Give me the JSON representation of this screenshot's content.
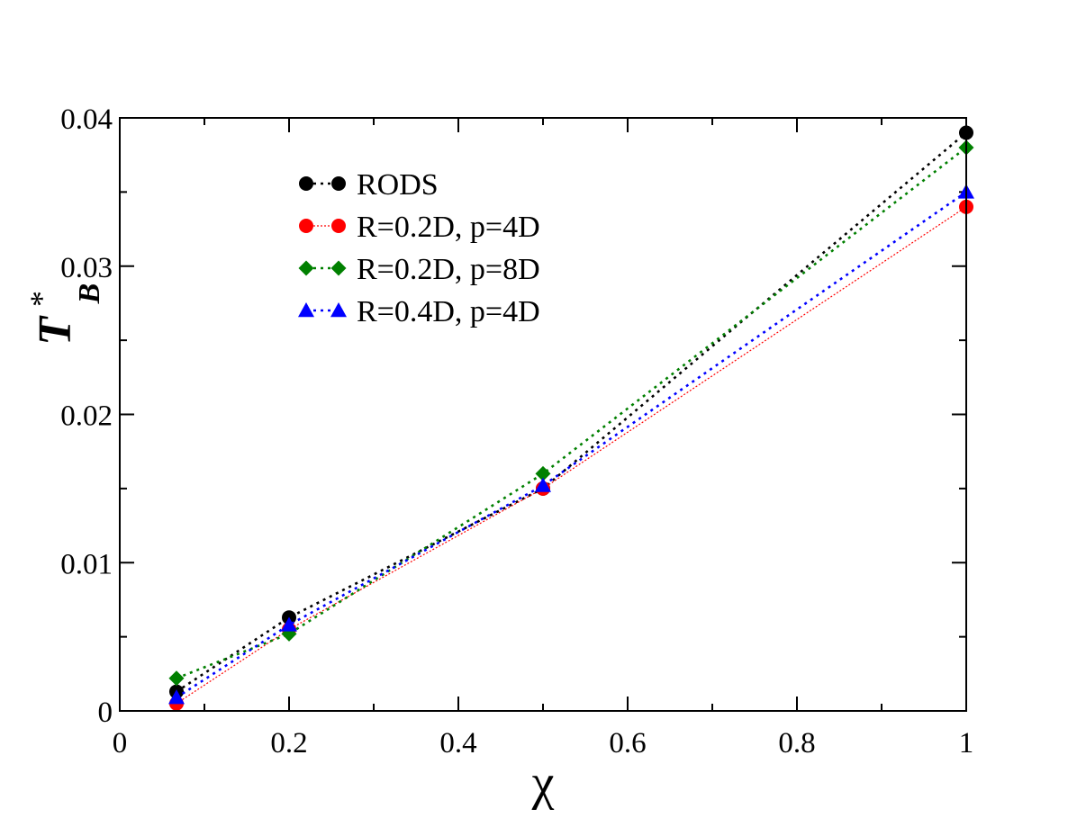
{
  "chart_data": {
    "type": "line",
    "title": "",
    "xlabel": "χ",
    "ylabel": {
      "main": "T",
      "sup": "*",
      "sub": "B"
    },
    "xlim": [
      0,
      1
    ],
    "ylim": [
      0,
      0.04
    ],
    "x_ticks": [
      0,
      0.2,
      0.4,
      0.6,
      0.8,
      1
    ],
    "x_tick_labels": [
      "0",
      "0.2",
      "0.4",
      "0.6",
      "0.8",
      "1"
    ],
    "y_ticks": [
      0,
      0.01,
      0.02,
      0.03,
      0.04
    ],
    "y_tick_labels": [
      "0",
      "0.01",
      "0.02",
      "0.03",
      "0.04"
    ],
    "legend_position": "top-left",
    "series": [
      {
        "name": "RODS",
        "color": "#000000",
        "marker": "circle",
        "line_style": "dotted",
        "x": [
          0.067,
          0.2,
          0.5,
          1.0
        ],
        "y": [
          0.0013,
          0.0063,
          0.015,
          0.039
        ]
      },
      {
        "name": "R=0.2D, p=4D",
        "color": "#ff0000",
        "marker": "circle",
        "line_style": "dotted-thin",
        "x": [
          0.067,
          0.2,
          0.5,
          1.0
        ],
        "y": [
          0.0005,
          0.0055,
          0.015,
          0.034
        ]
      },
      {
        "name": "R=0.2D, p=8D",
        "color": "#008000",
        "marker": "diamond",
        "line_style": "dotted",
        "x": [
          0.067,
          0.2,
          0.5,
          1.0
        ],
        "y": [
          0.0022,
          0.0052,
          0.016,
          0.038
        ]
      },
      {
        "name": "R=0.4D, p=4D",
        "color": "#0000ff",
        "marker": "triangle",
        "line_style": "dotted",
        "x": [
          0.067,
          0.2,
          0.5,
          1.0
        ],
        "y": [
          0.0009,
          0.0058,
          0.0152,
          0.035
        ]
      }
    ]
  }
}
